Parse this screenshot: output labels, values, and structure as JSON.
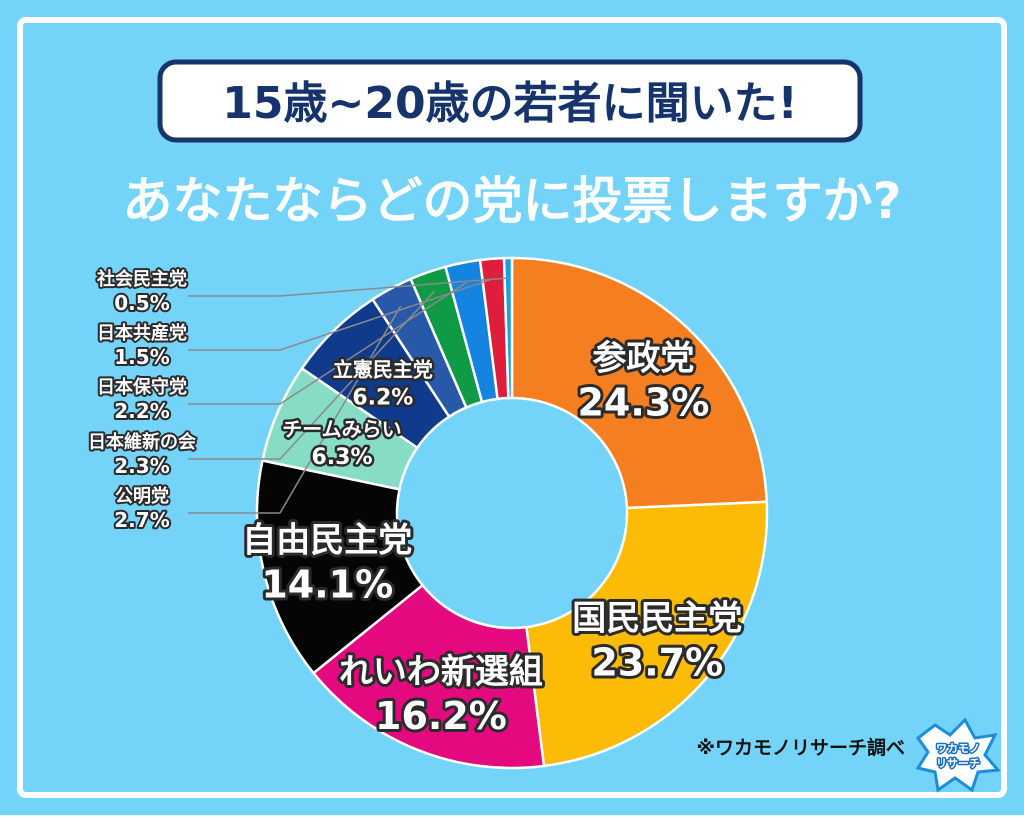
{
  "header": {
    "title": "15歳~20歳の若者に聞いた!",
    "subtitle": "あなたならどの党に投票しますか?"
  },
  "source_note": "※ワカモノリサーチ調べ",
  "logo_text": "ワカモノリサーチ",
  "colors": {
    "background": "#74d3f8",
    "title_border": "#17336b",
    "title_text": "#17336b"
  },
  "chart_data": {
    "type": "pie",
    "donut": true,
    "start": "top",
    "direction": "clockwise",
    "slices": [
      {
        "name": "参政党",
        "label": "24.3%",
        "value": 24.3,
        "color": "#f57f20",
        "label_position": "inside"
      },
      {
        "name": "国民民主党",
        "label": "23.7%",
        "value": 23.7,
        "color": "#fbbb07",
        "label_position": "inside"
      },
      {
        "name": "れいわ新選組",
        "label": "16.2%",
        "value": 16.2,
        "color": "#e4097e",
        "label_position": "inside"
      },
      {
        "name": "自由民主党",
        "label": "14.1%",
        "value": 14.1,
        "color": "#050505",
        "label_position": "inside"
      },
      {
        "name": "チームみらい",
        "label": "6.3%",
        "value": 6.3,
        "color": "#86dcc4",
        "label_position": "inside"
      },
      {
        "name": "立憲民主党",
        "label": "6.2%",
        "value": 6.2,
        "color": "#103a8c",
        "label_position": "inside"
      },
      {
        "name": "公明党",
        "label": "2.7%",
        "value": 2.7,
        "color": "#2859a8",
        "label_position": "left"
      },
      {
        "name": "日本維新の会",
        "label": "2.3%",
        "value": 2.3,
        "color": "#0f9a45",
        "label_position": "left"
      },
      {
        "name": "日本保守党",
        "label": "2.2%",
        "value": 2.2,
        "color": "#1583e0",
        "label_position": "left"
      },
      {
        "name": "日本共産党",
        "label": "1.5%",
        "value": 1.5,
        "color": "#df1d3c",
        "label_position": "left"
      },
      {
        "name": "社会民主党",
        "label": "0.5%",
        "value": 0.5,
        "color": "#1b9fe0",
        "label_position": "left"
      }
    ]
  }
}
